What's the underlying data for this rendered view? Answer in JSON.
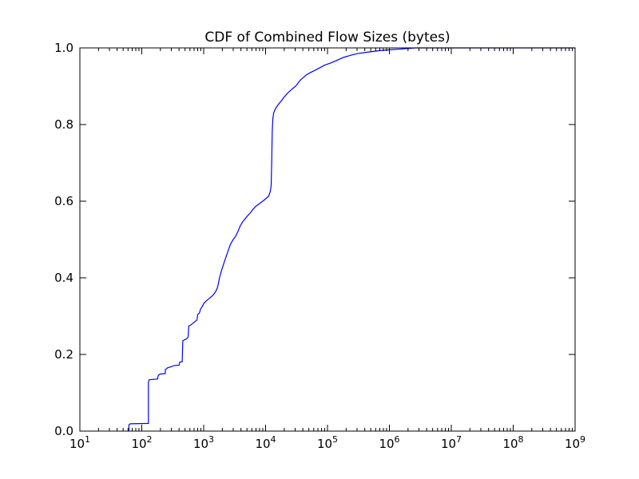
{
  "chart_data": {
    "type": "line",
    "title": "CDF of Combined Flow Sizes (bytes)",
    "xlabel": "",
    "ylabel": "",
    "x_scale": "log",
    "xlim": [
      10,
      1000000000
    ],
    "ylim": [
      0.0,
      1.0
    ],
    "grid": false,
    "legend": "none",
    "x_ticks": [
      10,
      100,
      1000,
      10000,
      100000,
      1000000,
      10000000,
      100000000,
      1000000000
    ],
    "x_tick_labels": [
      {
        "base": "10",
        "exp": "1"
      },
      {
        "base": "10",
        "exp": "2"
      },
      {
        "base": "10",
        "exp": "3"
      },
      {
        "base": "10",
        "exp": "4"
      },
      {
        "base": "10",
        "exp": "5"
      },
      {
        "base": "10",
        "exp": "6"
      },
      {
        "base": "10",
        "exp": "7"
      },
      {
        "base": "10",
        "exp": "8"
      },
      {
        "base": "10",
        "exp": "9"
      }
    ],
    "y_ticks": [
      0.0,
      0.2,
      0.4,
      0.6,
      0.8,
      1.0
    ],
    "y_tick_labels": [
      "0.0",
      "0.2",
      "0.4",
      "0.6",
      "0.8",
      "1.0"
    ],
    "series": [
      {
        "color": "#0000ff",
        "points": [
          [
            62,
            0.0
          ],
          [
            62,
            0.016
          ],
          [
            65,
            0.019
          ],
          [
            128,
            0.02
          ],
          [
            128,
            0.128
          ],
          [
            132,
            0.134
          ],
          [
            180,
            0.136
          ],
          [
            185,
            0.146
          ],
          [
            200,
            0.149
          ],
          [
            240,
            0.15
          ],
          [
            240,
            0.16
          ],
          [
            260,
            0.165
          ],
          [
            300,
            0.168
          ],
          [
            330,
            0.171
          ],
          [
            400,
            0.172
          ],
          [
            410,
            0.18
          ],
          [
            450,
            0.181
          ],
          [
            460,
            0.236
          ],
          [
            520,
            0.24
          ],
          [
            560,
            0.245
          ],
          [
            575,
            0.274
          ],
          [
            620,
            0.277
          ],
          [
            700,
            0.284
          ],
          [
            780,
            0.29
          ],
          [
            800,
            0.304
          ],
          [
            850,
            0.308
          ],
          [
            900,
            0.32
          ],
          [
            950,
            0.325
          ],
          [
            1000,
            0.333
          ],
          [
            1100,
            0.34
          ],
          [
            1250,
            0.347
          ],
          [
            1400,
            0.354
          ],
          [
            1550,
            0.363
          ],
          [
            1650,
            0.372
          ],
          [
            1720,
            0.383
          ],
          [
            1800,
            0.4
          ],
          [
            1950,
            0.42
          ],
          [
            2200,
            0.446
          ],
          [
            2500,
            0.472
          ],
          [
            2700,
            0.487
          ],
          [
            3000,
            0.5
          ],
          [
            3300,
            0.509
          ],
          [
            3600,
            0.522
          ],
          [
            3900,
            0.536
          ],
          [
            4300,
            0.547
          ],
          [
            5000,
            0.56
          ],
          [
            5700,
            0.57
          ],
          [
            6200,
            0.578
          ],
          [
            7000,
            0.587
          ],
          [
            8000,
            0.594
          ],
          [
            9000,
            0.6
          ],
          [
            10000,
            0.606
          ],
          [
            11200,
            0.613
          ],
          [
            11900,
            0.625
          ],
          [
            12300,
            0.64
          ],
          [
            12550,
            0.7
          ],
          [
            12800,
            0.78
          ],
          [
            13100,
            0.815
          ],
          [
            13500,
            0.83
          ],
          [
            14500,
            0.842
          ],
          [
            16000,
            0.852
          ],
          [
            18000,
            0.862
          ],
          [
            20000,
            0.872
          ],
          [
            23000,
            0.883
          ],
          [
            27000,
            0.893
          ],
          [
            31000,
            0.901
          ],
          [
            34000,
            0.91
          ],
          [
            37000,
            0.917
          ],
          [
            41000,
            0.923
          ],
          [
            46000,
            0.93
          ],
          [
            52000,
            0.935
          ],
          [
            62000,
            0.941
          ],
          [
            75000,
            0.948
          ],
          [
            90000,
            0.955
          ],
          [
            110000,
            0.96
          ],
          [
            140000,
            0.967
          ],
          [
            180000,
            0.975
          ],
          [
            230000,
            0.98
          ],
          [
            300000,
            0.985
          ],
          [
            450000,
            0.989
          ],
          [
            700000,
            0.993
          ],
          [
            1000000,
            0.995
          ],
          [
            1500000,
            0.997
          ],
          [
            2000000,
            0.9985
          ],
          [
            2600000,
            1.0
          ],
          [
            1000000000,
            1.0
          ]
        ]
      }
    ]
  }
}
